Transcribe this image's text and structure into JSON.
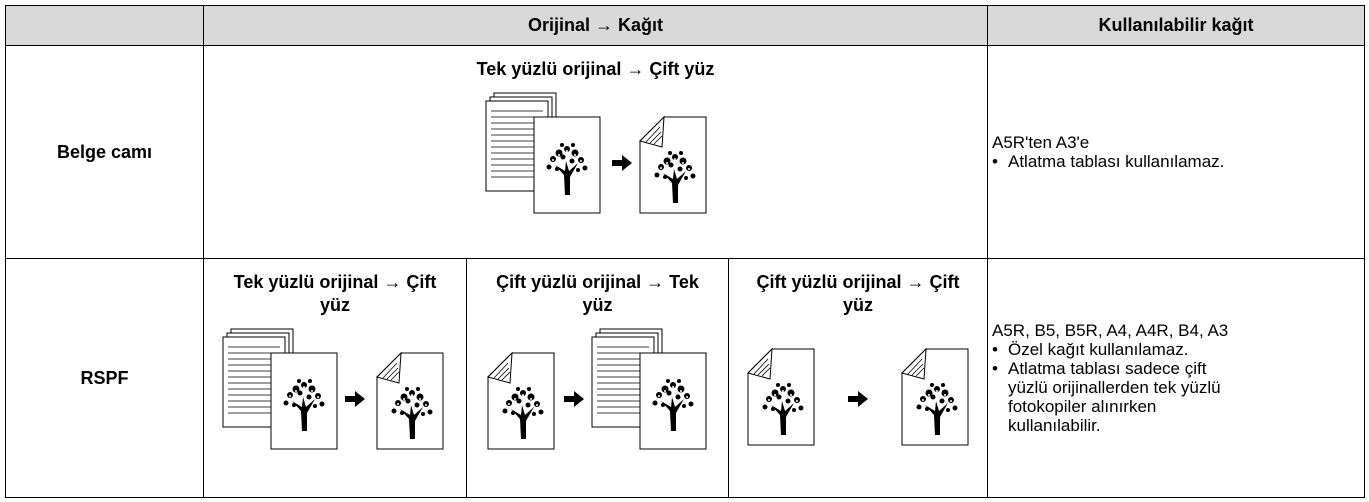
{
  "table": {
    "headers": [
      "Orijinal → Kağıt",
      "Kullanılabilir kağıt"
    ],
    "rows": [
      {
        "label": "Belge camı",
        "modes": [
          "Tek yüzlü orijinal → Çift yüz"
        ],
        "paper": {
          "sizes": "A5R'ten A3'e",
          "notes": [
            "Atlatma tablası kullanılamaz."
          ]
        }
      },
      {
        "label": "RSPF",
        "modes": [
          "Tek yüzlü orijinal → Çift yüz",
          "Çift yüzlü orijinal → Tek yüz",
          "Çift yüzlü orijinal → Çift yüz"
        ],
        "paper": {
          "sizes": "A5R, B5, B5R, A4, A4R, B4, A3",
          "notes": [
            "Özel kağıt kullanılamaz.",
            "Atlatma tablası sadece çift yüzlü orijinallerden tek yüzlü fotokopiler alınırken kullanılabilir."
          ]
        }
      }
    ]
  }
}
